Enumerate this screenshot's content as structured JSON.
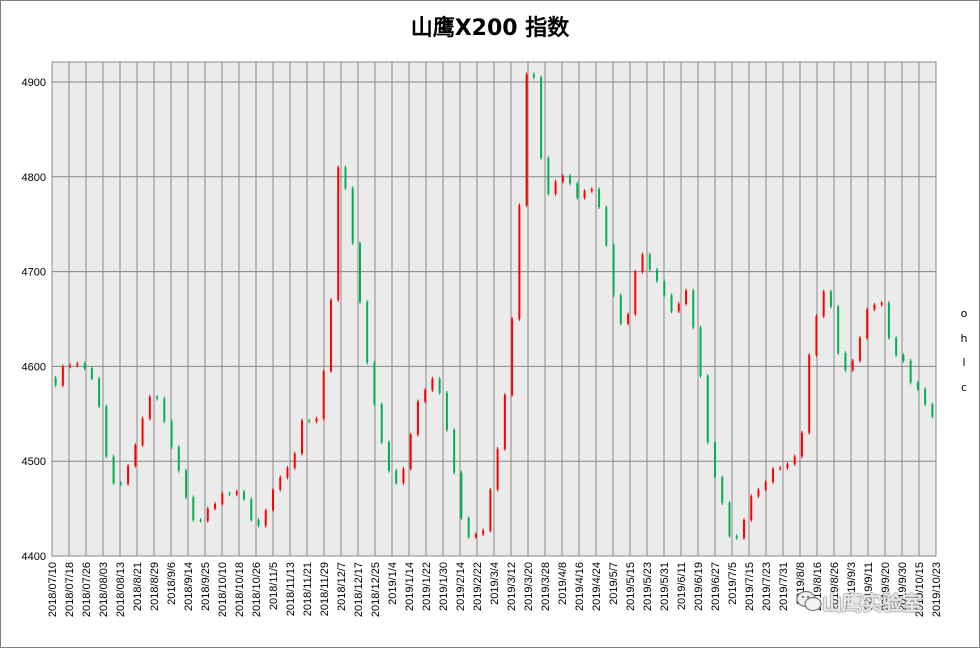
{
  "chart_data": {
    "type": "candlestick",
    "title": "山鹰X200 指数",
    "xlabel": "",
    "ylabel": "",
    "ylim": [
      4400,
      4920
    ],
    "yticks": [
      4400,
      4500,
      4600,
      4700,
      4800,
      4900
    ],
    "grid": true,
    "legend": {
      "position": "right",
      "items": [
        "o",
        "h",
        "l",
        "c"
      ]
    },
    "colors": {
      "up": "#ff0000",
      "down": "#00b050",
      "plot_bg": "#ebebeb",
      "grid": "#888888"
    },
    "x_tick_labels": [
      "2018/07/10",
      "2018/07/18",
      "2018/07/26",
      "2018/08/03",
      "2018/08/13",
      "2018/8/21",
      "2018/8/29",
      "2018/9/6",
      "2018/9/14",
      "2018/9/25",
      "2018/10/10",
      "2018/10/18",
      "2018/10/26",
      "2018/11/5",
      "2018/11/13",
      "2018/11/21",
      "2018/11/29",
      "2018/12/7",
      "2018/12/17",
      "2018/12/25",
      "2019/1/4",
      "2019/1/14",
      "2019/1/22",
      "2019/1/30",
      "2019/2/14",
      "2019/2/22",
      "2019/3/4",
      "2019/3/12",
      "2019/3/20",
      "2019/3/28",
      "2019/4/8",
      "2019/4/16",
      "2019/4/24",
      "2019/5/7",
      "2019/5/15",
      "2019/5/23",
      "2019/5/31",
      "2019/6/11",
      "2019/6/19",
      "2019/6/27",
      "2019/7/5",
      "2019/7/15",
      "2019/7/23",
      "2019/7/31",
      "2019/8/8",
      "2019/8/16",
      "2019/8/26",
      "2019/9/3",
      "2019/9/11",
      "2019/9/20",
      "2019/9/30",
      "2019/10/15",
      "2019/10/23"
    ],
    "closes": [
      4580,
      4600,
      4601,
      4603,
      4598,
      4587,
      4558,
      4505,
      4477,
      4476,
      4495,
      4517,
      4545,
      4568,
      4566,
      4542,
      4515,
      4490,
      4462,
      4438,
      4437,
      4450,
      4455,
      4466,
      4465,
      4468,
      4460,
      4438,
      4432,
      4448,
      4470,
      4483,
      4493,
      4508,
      4543,
      4542,
      4545,
      4595,
      4670,
      4810,
      4788,
      4730,
      4668,
      4604,
      4560,
      4520,
      4490,
      4477,
      4492,
      4528,
      4563,
      4575,
      4587,
      4572,
      4533,
      4488,
      4440,
      4420,
      4423,
      4427,
      4470,
      4513,
      4570,
      4650,
      4770,
      4908,
      4905,
      4820,
      4782,
      4795,
      4801,
      4793,
      4778,
      4785,
      4787,
      4768,
      4728,
      4675,
      4645,
      4655,
      4700,
      4718,
      4702,
      4690,
      4675,
      4658,
      4666,
      4680,
      4641,
      4590,
      4520,
      4483,
      4456,
      4421,
      4419,
      4438,
      4463,
      4470,
      4478,
      4492,
      4493,
      4497,
      4505,
      4530,
      4612,
      4653,
      4679,
      4663,
      4614,
      4596,
      4606,
      4630,
      4660,
      4665,
      4667,
      4630,
      4612,
      4606,
      4583,
      4576,
      4560,
      4547
    ]
  },
  "watermark": {
    "text": "山鹰实验室",
    "icon": "wechat-icon"
  }
}
